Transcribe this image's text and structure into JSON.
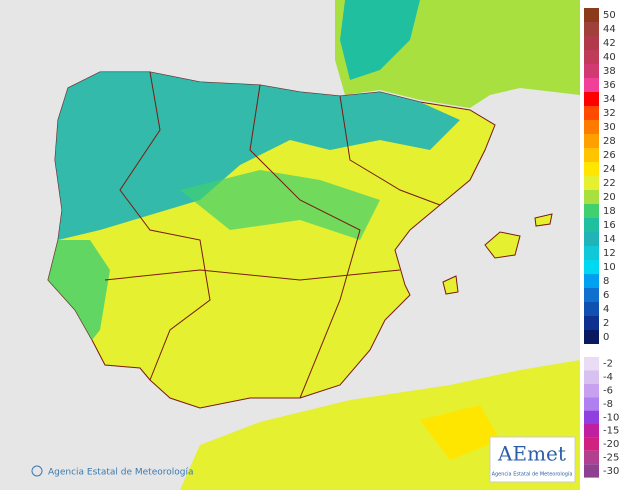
{
  "legend": {
    "positive": [
      {
        "value": 50,
        "color": "#8b3a1a"
      },
      {
        "value": 44,
        "color": "#a0403a"
      },
      {
        "value": 42,
        "color": "#b03a4a"
      },
      {
        "value": 40,
        "color": "#c03a5a"
      },
      {
        "value": 38,
        "color": "#d03a70"
      },
      {
        "value": 36,
        "color": "#f0409a"
      },
      {
        "value": 34,
        "color": "#ff0000"
      },
      {
        "value": 32,
        "color": "#ff4a00"
      },
      {
        "value": 30,
        "color": "#ff7a00"
      },
      {
        "value": 28,
        "color": "#ffa000"
      },
      {
        "value": 26,
        "color": "#ffc400"
      },
      {
        "value": 24,
        "color": "#ffe600"
      },
      {
        "value": 22,
        "color": "#e4f030"
      },
      {
        "value": 20,
        "color": "#a8e040"
      },
      {
        "value": 18,
        "color": "#40d070"
      },
      {
        "value": 16,
        "color": "#20bfa0"
      },
      {
        "value": 14,
        "color": "#20b4b8"
      },
      {
        "value": 12,
        "color": "#10c8d8"
      },
      {
        "value": 10,
        "color": "#00d8f0"
      },
      {
        "value": 8,
        "color": "#00a0f0"
      },
      {
        "value": 6,
        "color": "#1070d0"
      },
      {
        "value": 4,
        "color": "#1050b0"
      },
      {
        "value": 2,
        "color": "#103090"
      },
      {
        "value": 0,
        "color": "#0a1a60"
      }
    ],
    "negative": [
      {
        "value": -2,
        "color": "#eadcf4"
      },
      {
        "value": -4,
        "color": "#d8c0f0"
      },
      {
        "value": -6,
        "color": "#c8a0f0"
      },
      {
        "value": -8,
        "color": "#b080f0"
      },
      {
        "value": -10,
        "color": "#9040e0"
      },
      {
        "value": -15,
        "color": "#c020a0"
      },
      {
        "value": -20,
        "color": "#d02080"
      },
      {
        "value": -25,
        "color": "#b04090"
      },
      {
        "value": -30,
        "color": "#904090"
      }
    ]
  },
  "footer": {
    "copyright": "Agencia Estatal de Meteorología"
  },
  "logo": {
    "brand": "AEmet",
    "subtitle": "Agencia Estatal de Meteorología"
  }
}
